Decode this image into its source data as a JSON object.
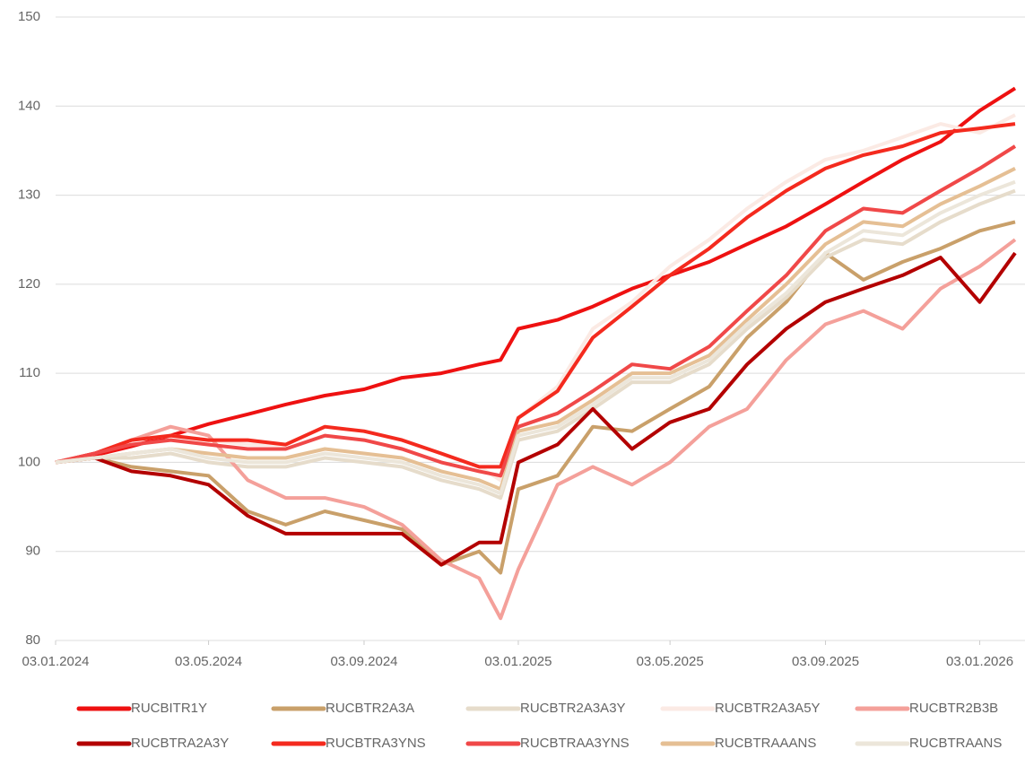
{
  "chart_data": {
    "type": "line",
    "x": [
      "2024-01-03",
      "2024-02-03",
      "2024-03-03",
      "2024-04-03",
      "2024-05-03",
      "2024-06-03",
      "2024-07-03",
      "2024-08-03",
      "2024-09-03",
      "2024-10-03",
      "2024-11-03",
      "2024-12-03",
      "2024-12-20",
      "2025-01-03",
      "2025-02-03",
      "2025-03-03",
      "2025-04-03",
      "2025-05-03",
      "2025-06-03",
      "2025-07-03",
      "2025-08-03",
      "2025-09-03",
      "2025-10-03",
      "2025-11-03",
      "2025-12-03",
      "2026-01-03",
      "2026-01-31"
    ],
    "xlim": [
      "2024-01-03",
      "2026-01-31"
    ],
    "xticks": [
      {
        "value": "2024-01-03",
        "label": "03.01.2024"
      },
      {
        "value": "2024-05-03",
        "label": "03.05.2024"
      },
      {
        "value": "2024-09-03",
        "label": "03.09.2024"
      },
      {
        "value": "2025-01-03",
        "label": "03.01.2025"
      },
      {
        "value": "2025-05-03",
        "label": "03.05.2025"
      },
      {
        "value": "2025-09-03",
        "label": "03.09.2025"
      },
      {
        "value": "2026-01-03",
        "label": "03.01.2026"
      }
    ],
    "ylim": [
      80,
      150
    ],
    "yticks": [
      80,
      90,
      100,
      110,
      120,
      130,
      140,
      150
    ],
    "grid": true,
    "series": [
      {
        "name": "RUCBITR1Y",
        "color": "#ee1111",
        "values": [
          100,
          100.8,
          101.8,
          103,
          104.3,
          105.4,
          106.5,
          107.5,
          108.2,
          109.5,
          110,
          111,
          111.5,
          115,
          116,
          117.5,
          119.5,
          121,
          122.5,
          124.5,
          126.5,
          129,
          131.5,
          134,
          136,
          139.5,
          142
        ]
      },
      {
        "name": "RUCBTR2A3A",
        "color": "#c9a06a",
        "values": [
          100,
          100.5,
          99.5,
          99,
          98.5,
          94.5,
          93,
          94.5,
          93.5,
          92.5,
          88.5,
          90,
          87.6,
          97,
          98.5,
          104,
          103.5,
          106,
          108.5,
          114,
          118,
          123.5,
          120.5,
          122.5,
          124,
          126,
          127
        ]
      },
      {
        "name": "RUCBTR2A3A3Y",
        "color": "#e6dccb",
        "values": [
          100,
          100.5,
          100.5,
          101,
          100,
          99.5,
          99.5,
          100.5,
          100,
          99.5,
          98,
          97,
          96,
          102.5,
          103.5,
          106,
          109,
          109,
          111,
          115,
          118.5,
          123,
          125,
          124.5,
          127,
          129,
          130.5
        ]
      },
      {
        "name": "RUCBTR2A3A5Y",
        "color": "#fbeae4",
        "values": [
          100,
          101,
          102.5,
          103,
          102.5,
          102,
          102,
          104,
          103.5,
          102.5,
          101,
          99.5,
          98,
          105,
          108.5,
          115,
          118,
          122,
          125,
          128.5,
          131.5,
          134,
          135,
          136.5,
          138,
          137,
          139
        ]
      },
      {
        "name": "RUCBTR2B3B",
        "color": "#f4a09a",
        "values": [
          100,
          101,
          102.5,
          104,
          103,
          98,
          96,
          96,
          95,
          93,
          89,
          87,
          82.5,
          88,
          97.5,
          99.5,
          97.5,
          100,
          104,
          106,
          111.5,
          115.5,
          117,
          115,
          119.5,
          122,
          125
        ]
      },
      {
        "name": "RUCBTRA2A3Y",
        "color": "#b30000",
        "values": [
          100,
          100.5,
          99,
          98.5,
          97.5,
          94,
          92,
          92,
          92,
          92,
          88.5,
          91,
          91,
          100,
          102,
          106,
          101.5,
          104.5,
          106,
          111,
          115,
          118,
          119.5,
          121,
          123,
          118,
          123.5
        ]
      },
      {
        "name": "RUCBTRA3YNS",
        "color": "#f42a1e",
        "values": [
          100,
          101,
          102.5,
          103,
          102.5,
          102.5,
          102,
          104,
          103.5,
          102.5,
          101,
          99.5,
          99.5,
          105,
          108,
          114,
          117.5,
          121,
          124,
          127.5,
          130.5,
          133,
          134.5,
          135.5,
          137,
          137.5,
          138
        ]
      },
      {
        "name": "RUCBTRAA3YNS",
        "color": "#f04848",
        "values": [
          100,
          101,
          102,
          102.5,
          102,
          101.5,
          101.5,
          103,
          102.5,
          101.5,
          100,
          99,
          98.5,
          104,
          105.5,
          108,
          111,
          110.5,
          113,
          117,
          121,
          126,
          128.5,
          128,
          130.5,
          133,
          135.5
        ]
      },
      {
        "name": "RUCBTRAAANS",
        "color": "#e5bf94",
        "values": [
          100,
          100.5,
          101,
          101.5,
          101,
          100.5,
          100.5,
          101.5,
          101,
          100.5,
          99,
          98,
          97,
          103.5,
          104.5,
          107,
          110,
          110,
          112,
          116,
          120,
          124.5,
          127,
          126.5,
          129,
          131,
          133
        ]
      },
      {
        "name": "RUCBTRAANS",
        "color": "#ece6da",
        "values": [
          100,
          100.5,
          101,
          101.5,
          100.5,
          100,
          100,
          101,
          100.5,
          100,
          98.5,
          97.5,
          96.5,
          103,
          104,
          106.5,
          109.5,
          109.5,
          111.5,
          115.5,
          119,
          123.5,
          126,
          125.5,
          128,
          130,
          131.5
        ]
      }
    ]
  }
}
